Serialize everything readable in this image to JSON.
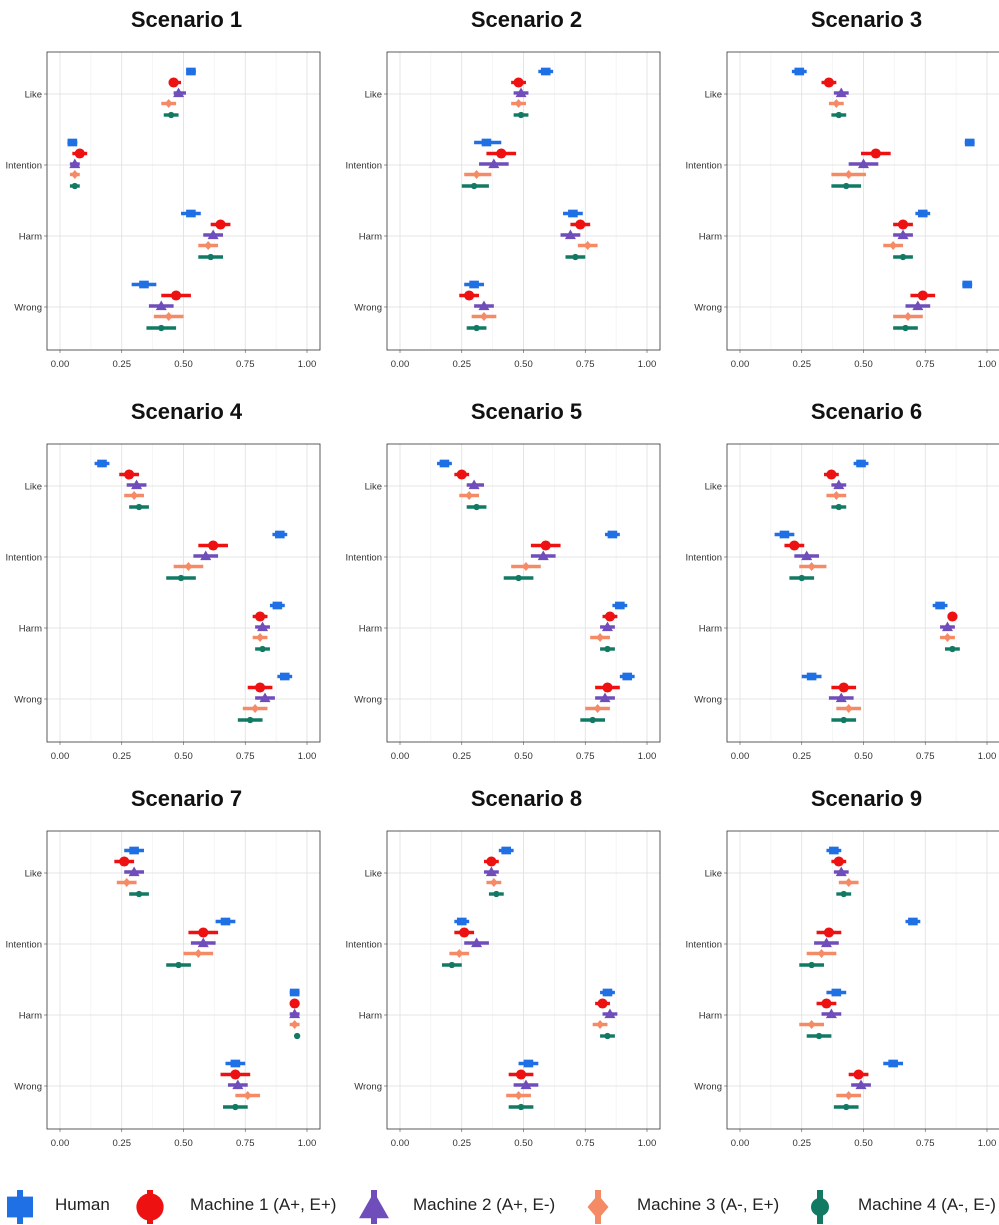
{
  "chart_data": {
    "type": "scatter",
    "subtype": "dot-whisker",
    "grid": true,
    "legend_position": "bottom",
    "xlim": [
      0,
      1
    ],
    "x_ticks": [
      "0.00",
      "0.25",
      "0.50",
      "0.75",
      "1.00"
    ],
    "y_categories": [
      "Like",
      "Intention",
      "Harm",
      "Wrong"
    ],
    "series_meta": [
      {
        "name": "Human",
        "color": "#1f6fe5",
        "marker": "square"
      },
      {
        "name": "Machine 1 (A+, E+)",
        "color": "#ee1111",
        "marker": "circle"
      },
      {
        "name": "Machine 2 (A+, E-)",
        "color": "#6f4dbb",
        "marker": "triangle"
      },
      {
        "name": "Machine 3 (A-, E+)",
        "color": "#f58a66",
        "marker": "diamond"
      },
      {
        "name": "Machine 4 (A-, E-)",
        "color": "#127a63",
        "marker": "dot"
      }
    ],
    "panels": [
      {
        "title": "Scenario 1",
        "values": {
          "Like": [
            [
              0.53,
              0.52,
              0.55
            ],
            [
              0.46,
              0.44,
              0.49
            ],
            [
              0.48,
              0.46,
              0.51
            ],
            [
              0.44,
              0.41,
              0.47
            ],
            [
              0.45,
              0.42,
              0.48
            ]
          ],
          "Intention": [
            [
              0.05,
              0.03,
              0.07
            ],
            [
              0.08,
              0.05,
              0.11
            ],
            [
              0.06,
              0.04,
              0.08
            ],
            [
              0.06,
              0.04,
              0.08
            ],
            [
              0.06,
              0.04,
              0.08
            ]
          ],
          "Harm": [
            [
              0.53,
              0.49,
              0.57
            ],
            [
              0.65,
              0.61,
              0.69
            ],
            [
              0.62,
              0.58,
              0.66
            ],
            [
              0.6,
              0.56,
              0.64
            ],
            [
              0.61,
              0.56,
              0.66
            ]
          ],
          "Wrong": [
            [
              0.34,
              0.29,
              0.39
            ],
            [
              0.47,
              0.41,
              0.53
            ],
            [
              0.41,
              0.36,
              0.46
            ],
            [
              0.44,
              0.38,
              0.5
            ],
            [
              0.41,
              0.35,
              0.47
            ]
          ]
        }
      },
      {
        "title": "Scenario 2",
        "values": {
          "Like": [
            [
              0.59,
              0.56,
              0.62
            ],
            [
              0.48,
              0.45,
              0.51
            ],
            [
              0.49,
              0.46,
              0.52
            ],
            [
              0.48,
              0.45,
              0.51
            ],
            [
              0.49,
              0.46,
              0.52
            ]
          ],
          "Intention": [
            [
              0.35,
              0.3,
              0.41
            ],
            [
              0.41,
              0.35,
              0.47
            ],
            [
              0.38,
              0.32,
              0.44
            ],
            [
              0.31,
              0.26,
              0.37
            ],
            [
              0.3,
              0.25,
              0.36
            ]
          ],
          "Harm": [
            [
              0.7,
              0.66,
              0.74
            ],
            [
              0.73,
              0.69,
              0.77
            ],
            [
              0.69,
              0.65,
              0.73
            ],
            [
              0.76,
              0.72,
              0.8
            ],
            [
              0.71,
              0.67,
              0.75
            ]
          ],
          "Wrong": [
            [
              0.3,
              0.26,
              0.34
            ],
            [
              0.28,
              0.24,
              0.32
            ],
            [
              0.34,
              0.3,
              0.38
            ],
            [
              0.34,
              0.29,
              0.39
            ],
            [
              0.31,
              0.27,
              0.35
            ]
          ]
        }
      },
      {
        "title": "Scenario 3",
        "values": {
          "Like": [
            [
              0.24,
              0.21,
              0.27
            ],
            [
              0.36,
              0.33,
              0.39
            ],
            [
              0.41,
              0.38,
              0.44
            ],
            [
              0.39,
              0.36,
              0.42
            ],
            [
              0.4,
              0.37,
              0.43
            ]
          ],
          "Intention": [
            [
              0.93,
              0.91,
              0.95
            ],
            [
              0.55,
              0.49,
              0.61
            ],
            [
              0.5,
              0.44,
              0.56
            ],
            [
              0.44,
              0.37,
              0.51
            ],
            [
              0.43,
              0.37,
              0.49
            ]
          ],
          "Harm": [
            [
              0.74,
              0.71,
              0.77
            ],
            [
              0.66,
              0.62,
              0.7
            ],
            [
              0.66,
              0.62,
              0.7
            ],
            [
              0.62,
              0.58,
              0.66
            ],
            [
              0.66,
              0.62,
              0.7
            ]
          ],
          "Wrong": [
            [
              0.92,
              0.9,
              0.94
            ],
            [
              0.74,
              0.69,
              0.79
            ],
            [
              0.72,
              0.67,
              0.77
            ],
            [
              0.68,
              0.62,
              0.74
            ],
            [
              0.67,
              0.62,
              0.72
            ]
          ]
        }
      },
      {
        "title": "Scenario 4",
        "values": {
          "Like": [
            [
              0.17,
              0.14,
              0.2
            ],
            [
              0.28,
              0.24,
              0.32
            ],
            [
              0.31,
              0.27,
              0.35
            ],
            [
              0.3,
              0.26,
              0.34
            ],
            [
              0.32,
              0.28,
              0.36
            ]
          ],
          "Intention": [
            [
              0.89,
              0.86,
              0.92
            ],
            [
              0.62,
              0.56,
              0.68
            ],
            [
              0.59,
              0.54,
              0.64
            ],
            [
              0.52,
              0.46,
              0.58
            ],
            [
              0.49,
              0.43,
              0.55
            ]
          ],
          "Harm": [
            [
              0.88,
              0.85,
              0.91
            ],
            [
              0.81,
              0.78,
              0.84
            ],
            [
              0.82,
              0.79,
              0.85
            ],
            [
              0.81,
              0.78,
              0.84
            ],
            [
              0.82,
              0.79,
              0.85
            ]
          ],
          "Wrong": [
            [
              0.91,
              0.88,
              0.94
            ],
            [
              0.81,
              0.76,
              0.86
            ],
            [
              0.83,
              0.79,
              0.87
            ],
            [
              0.79,
              0.74,
              0.84
            ],
            [
              0.77,
              0.72,
              0.82
            ]
          ]
        }
      },
      {
        "title": "Scenario 5",
        "values": {
          "Like": [
            [
              0.18,
              0.15,
              0.21
            ],
            [
              0.25,
              0.22,
              0.28
            ],
            [
              0.3,
              0.27,
              0.34
            ],
            [
              0.28,
              0.24,
              0.32
            ],
            [
              0.31,
              0.27,
              0.35
            ]
          ],
          "Intention": [
            [
              0.86,
              0.83,
              0.89
            ],
            [
              0.59,
              0.53,
              0.65
            ],
            [
              0.58,
              0.53,
              0.63
            ],
            [
              0.51,
              0.45,
              0.57
            ],
            [
              0.48,
              0.42,
              0.54
            ]
          ],
          "Harm": [
            [
              0.89,
              0.86,
              0.92
            ],
            [
              0.85,
              0.82,
              0.88
            ],
            [
              0.84,
              0.81,
              0.87
            ],
            [
              0.81,
              0.77,
              0.85
            ],
            [
              0.84,
              0.81,
              0.87
            ]
          ],
          "Wrong": [
            [
              0.92,
              0.89,
              0.95
            ],
            [
              0.84,
              0.79,
              0.89
            ],
            [
              0.83,
              0.79,
              0.87
            ],
            [
              0.8,
              0.75,
              0.85
            ],
            [
              0.78,
              0.73,
              0.83
            ]
          ]
        }
      },
      {
        "title": "Scenario 6",
        "values": {
          "Like": [
            [
              0.49,
              0.46,
              0.52
            ],
            [
              0.37,
              0.34,
              0.4
            ],
            [
              0.4,
              0.37,
              0.43
            ],
            [
              0.39,
              0.35,
              0.43
            ],
            [
              0.4,
              0.37,
              0.43
            ]
          ],
          "Intention": [
            [
              0.18,
              0.14,
              0.22
            ],
            [
              0.22,
              0.18,
              0.26
            ],
            [
              0.27,
              0.22,
              0.32
            ],
            [
              0.29,
              0.24,
              0.35
            ],
            [
              0.25,
              0.2,
              0.3
            ]
          ],
          "Harm": [
            [
              0.81,
              0.78,
              0.84
            ],
            [
              0.86,
              0.84,
              0.88
            ],
            [
              0.84,
              0.81,
              0.87
            ],
            [
              0.84,
              0.81,
              0.87
            ],
            [
              0.86,
              0.83,
              0.89
            ]
          ],
          "Wrong": [
            [
              0.29,
              0.25,
              0.33
            ],
            [
              0.42,
              0.37,
              0.47
            ],
            [
              0.41,
              0.36,
              0.46
            ],
            [
              0.44,
              0.39,
              0.49
            ],
            [
              0.42,
              0.37,
              0.47
            ]
          ]
        }
      },
      {
        "title": "Scenario 7",
        "values": {
          "Like": [
            [
              0.3,
              0.26,
              0.34
            ],
            [
              0.26,
              0.22,
              0.3
            ],
            [
              0.3,
              0.26,
              0.34
            ],
            [
              0.27,
              0.23,
              0.31
            ],
            [
              0.32,
              0.28,
              0.36
            ]
          ],
          "Intention": [
            [
              0.67,
              0.63,
              0.71
            ],
            [
              0.58,
              0.52,
              0.64
            ],
            [
              0.58,
              0.53,
              0.63
            ],
            [
              0.56,
              0.5,
              0.62
            ],
            [
              0.48,
              0.43,
              0.53
            ]
          ],
          "Harm": [
            [
              0.95,
              0.93,
              0.97
            ],
            [
              0.95,
              0.93,
              0.97
            ],
            [
              0.95,
              0.93,
              0.97
            ],
            [
              0.95,
              0.93,
              0.97
            ],
            [
              0.96,
              0.95,
              0.97
            ]
          ],
          "Wrong": [
            [
              0.71,
              0.67,
              0.75
            ],
            [
              0.71,
              0.65,
              0.77
            ],
            [
              0.72,
              0.68,
              0.76
            ],
            [
              0.76,
              0.71,
              0.81
            ],
            [
              0.71,
              0.66,
              0.76
            ]
          ]
        }
      },
      {
        "title": "Scenario 8",
        "values": {
          "Like": [
            [
              0.43,
              0.4,
              0.46
            ],
            [
              0.37,
              0.34,
              0.4
            ],
            [
              0.37,
              0.34,
              0.4
            ],
            [
              0.38,
              0.35,
              0.41
            ],
            [
              0.39,
              0.36,
              0.42
            ]
          ],
          "Intention": [
            [
              0.25,
              0.22,
              0.28
            ],
            [
              0.26,
              0.22,
              0.3
            ],
            [
              0.31,
              0.26,
              0.36
            ],
            [
              0.24,
              0.2,
              0.28
            ],
            [
              0.21,
              0.17,
              0.25
            ]
          ],
          "Harm": [
            [
              0.84,
              0.81,
              0.87
            ],
            [
              0.82,
              0.79,
              0.85
            ],
            [
              0.85,
              0.82,
              0.88
            ],
            [
              0.81,
              0.78,
              0.84
            ],
            [
              0.84,
              0.81,
              0.87
            ]
          ],
          "Wrong": [
            [
              0.52,
              0.48,
              0.56
            ],
            [
              0.49,
              0.44,
              0.54
            ],
            [
              0.51,
              0.46,
              0.56
            ],
            [
              0.48,
              0.43,
              0.53
            ],
            [
              0.49,
              0.44,
              0.54
            ]
          ]
        }
      },
      {
        "title": "Scenario 9",
        "values": {
          "Like": [
            [
              0.38,
              0.35,
              0.41
            ],
            [
              0.4,
              0.37,
              0.43
            ],
            [
              0.41,
              0.38,
              0.44
            ],
            [
              0.44,
              0.4,
              0.48
            ],
            [
              0.42,
              0.39,
              0.45
            ]
          ],
          "Intention": [
            [
              0.7,
              0.67,
              0.73
            ],
            [
              0.36,
              0.31,
              0.41
            ],
            [
              0.35,
              0.3,
              0.4
            ],
            [
              0.33,
              0.27,
              0.39
            ],
            [
              0.29,
              0.24,
              0.34
            ]
          ],
          "Harm": [
            [
              0.39,
              0.35,
              0.43
            ],
            [
              0.35,
              0.31,
              0.39
            ],
            [
              0.37,
              0.33,
              0.41
            ],
            [
              0.29,
              0.24,
              0.34
            ],
            [
              0.32,
              0.27,
              0.37
            ]
          ],
          "Wrong": [
            [
              0.62,
              0.58,
              0.66
            ],
            [
              0.48,
              0.44,
              0.52
            ],
            [
              0.49,
              0.45,
              0.53
            ],
            [
              0.44,
              0.39,
              0.49
            ],
            [
              0.43,
              0.38,
              0.48
            ]
          ]
        }
      }
    ]
  },
  "legend": {
    "human": "Human",
    "m1": "Machine 1 (A+, E+)",
    "m2": "Machine 2 (A+, E-)",
    "m3": "Machine 3 (A-, E+)",
    "m4": "Machine 4 (A-, E-)"
  }
}
